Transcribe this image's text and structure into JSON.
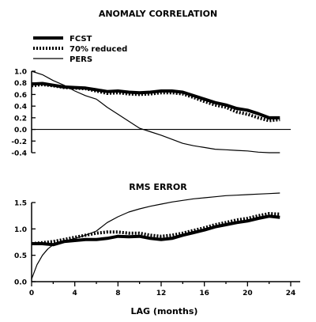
{
  "chart_data": [
    {
      "type": "line",
      "title": "ANOMALY CORRELATION",
      "xlabel": "",
      "ylabel": "",
      "xlim": [
        0,
        24
      ],
      "ylim": [
        -0.4,
        1.0
      ],
      "yticks": [
        1.0,
        0.8,
        0.6,
        0.4,
        0.2,
        0.0,
        -0.2,
        -0.4
      ],
      "ytick_labels": [
        "1.0",
        "0.8",
        "0.6",
        "0.4",
        "0.2",
        "0.0",
        "-0.2",
        "-0.4"
      ],
      "reference_line": 0.0,
      "legend": {
        "placement": "top-left",
        "entries": [
          "FCST",
          "70% reduced",
          "PERS"
        ]
      },
      "series": [
        {
          "name": "FCST",
          "style": "thick-solid",
          "x": [
            0,
            1,
            2,
            3,
            4,
            5,
            6,
            7,
            8,
            9,
            10,
            11,
            12,
            13,
            14,
            15,
            16,
            17,
            18,
            19,
            20,
            21,
            22,
            23
          ],
          "y": [
            0.78,
            0.79,
            0.76,
            0.73,
            0.72,
            0.71,
            0.68,
            0.65,
            0.66,
            0.64,
            0.63,
            0.64,
            0.66,
            0.66,
            0.64,
            0.58,
            0.52,
            0.46,
            0.42,
            0.36,
            0.33,
            0.27,
            0.2,
            0.2
          ]
        },
        {
          "name": "70% reduced",
          "style": "dotted",
          "x": [
            0,
            1,
            2,
            3,
            4,
            5,
            6,
            7,
            8,
            9,
            10,
            11,
            12,
            13,
            14,
            15,
            16,
            17,
            18,
            19,
            20,
            21,
            22,
            23
          ],
          "y": [
            0.75,
            0.77,
            0.75,
            0.72,
            0.71,
            0.7,
            0.66,
            0.62,
            0.63,
            0.61,
            0.6,
            0.61,
            0.63,
            0.63,
            0.61,
            0.55,
            0.48,
            0.42,
            0.38,
            0.3,
            0.26,
            0.2,
            0.15,
            0.17
          ]
        },
        {
          "name": "PERS",
          "style": "thin-solid",
          "x": [
            0,
            1,
            2,
            3,
            4,
            5,
            6,
            7,
            8,
            9,
            10,
            11,
            12,
            13,
            14,
            15,
            16,
            17,
            18,
            19,
            20,
            21,
            22,
            23
          ],
          "y": [
            1.0,
            0.94,
            0.84,
            0.76,
            0.66,
            0.58,
            0.52,
            0.38,
            0.26,
            0.14,
            0.02,
            -0.04,
            -0.1,
            -0.17,
            -0.24,
            -0.28,
            -0.31,
            -0.34,
            -0.35,
            -0.36,
            -0.37,
            -0.39,
            -0.4,
            -0.4
          ]
        }
      ]
    },
    {
      "type": "line",
      "title": "RMS ERROR",
      "xlabel": "LAG (months)",
      "ylabel": "",
      "xlim": [
        0,
        24
      ],
      "ylim": [
        0.0,
        1.5
      ],
      "xticks": [
        0,
        4,
        8,
        12,
        16,
        20,
        24
      ],
      "xtick_labels": [
        "0",
        "4",
        "8",
        "12",
        "16",
        "20",
        "24"
      ],
      "yticks": [
        0.0,
        0.5,
        1.0,
        1.5
      ],
      "ytick_labels": [
        "0.0",
        "0.5",
        "1.0",
        "1.5"
      ],
      "series": [
        {
          "name": "FCST",
          "style": "thick-solid",
          "x": [
            0,
            1,
            2,
            3,
            4,
            5,
            6,
            7,
            8,
            9,
            10,
            11,
            12,
            13,
            14,
            15,
            16,
            17,
            18,
            19,
            20,
            21,
            22,
            23
          ],
          "y": [
            0.72,
            0.72,
            0.7,
            0.76,
            0.78,
            0.8,
            0.8,
            0.82,
            0.86,
            0.85,
            0.86,
            0.82,
            0.8,
            0.82,
            0.88,
            0.93,
            0.98,
            1.04,
            1.08,
            1.12,
            1.15,
            1.2,
            1.24,
            1.22
          ]
        },
        {
          "name": "70% reduced",
          "style": "dotted",
          "x": [
            0,
            1,
            2,
            3,
            4,
            5,
            6,
            7,
            8,
            9,
            10,
            11,
            12,
            13,
            14,
            15,
            16,
            17,
            18,
            19,
            20,
            21,
            22,
            23
          ],
          "y": [
            0.72,
            0.74,
            0.76,
            0.8,
            0.84,
            0.88,
            0.92,
            0.94,
            0.94,
            0.92,
            0.92,
            0.88,
            0.86,
            0.88,
            0.92,
            0.97,
            1.02,
            1.08,
            1.12,
            1.17,
            1.2,
            1.25,
            1.29,
            1.28
          ]
        },
        {
          "name": "PERS",
          "style": "thin-solid",
          "x": [
            0,
            0.5,
            1,
            1.5,
            2,
            3,
            4,
            5,
            6,
            7,
            8,
            9,
            10,
            11,
            12,
            13,
            14,
            15,
            16,
            17,
            18,
            19,
            20,
            21,
            22,
            23
          ],
          "y": [
            0.05,
            0.32,
            0.5,
            0.62,
            0.7,
            0.76,
            0.82,
            0.88,
            0.96,
            1.12,
            1.23,
            1.32,
            1.38,
            1.43,
            1.47,
            1.51,
            1.54,
            1.57,
            1.59,
            1.61,
            1.63,
            1.64,
            1.65,
            1.66,
            1.67,
            1.68
          ]
        }
      ]
    }
  ]
}
